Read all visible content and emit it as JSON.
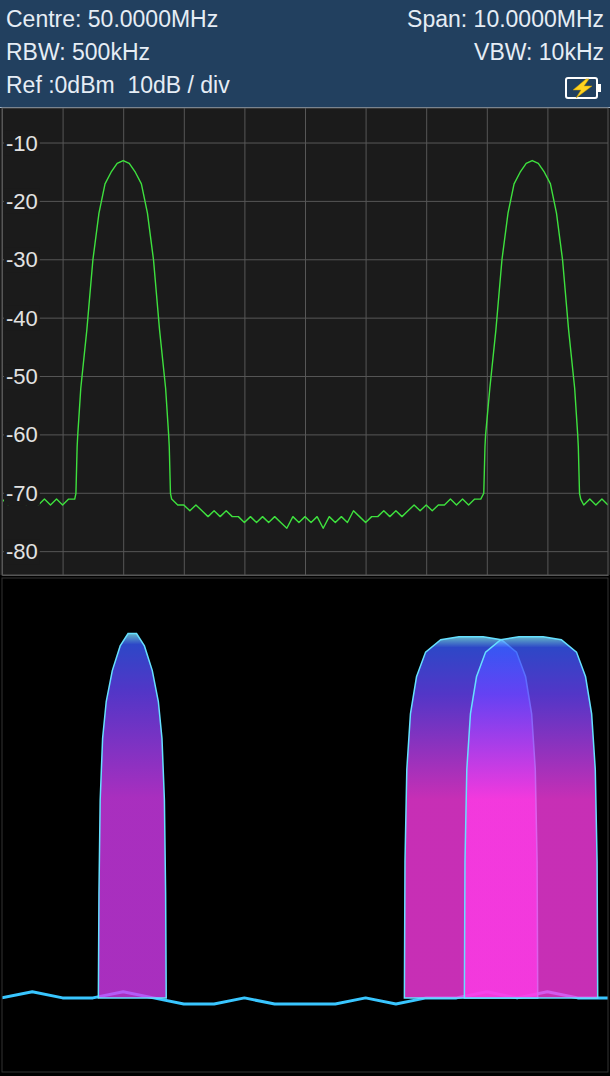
{
  "chart_data": [
    {
      "type": "line",
      "annotations": [
        "Centre: 50.0000MHz",
        "Span: 10.0000MHz",
        "RBW: 500kHz",
        "VBW: 10kHz",
        "Ref :0dBm  10dB / div"
      ],
      "x": [
        45.0,
        45.1,
        45.2,
        45.3,
        45.4,
        45.5,
        45.6,
        45.7,
        45.8,
        45.9,
        46.0,
        46.1,
        46.2,
        46.22,
        46.24,
        46.25,
        46.3,
        46.4,
        46.5,
        46.6,
        46.7,
        46.8,
        46.9,
        47.0,
        47.1,
        47.2,
        47.3,
        47.4,
        47.5,
        47.6,
        47.7,
        47.75,
        47.76,
        47.78,
        47.8,
        47.9,
        48.0,
        48.1,
        48.2,
        48.3,
        48.4,
        48.5,
        48.6,
        48.7,
        48.8,
        48.9,
        49.0,
        49.1,
        49.2,
        49.3,
        49.4,
        49.5,
        49.6,
        49.7,
        49.8,
        49.9,
        50.0,
        50.1,
        50.2,
        50.3,
        50.4,
        50.5,
        50.6,
        50.7,
        50.8,
        50.9,
        51.0,
        51.1,
        51.2,
        51.3,
        51.4,
        51.5,
        51.6,
        51.7,
        51.8,
        51.9,
        52.0,
        52.1,
        52.2,
        52.3,
        52.4,
        52.5,
        52.6,
        52.7,
        52.8,
        52.9,
        52.95,
        52.97,
        52.98,
        53.05,
        53.15,
        53.25,
        53.35,
        53.45,
        53.55,
        53.65,
        53.75,
        53.85,
        53.95,
        54.05,
        54.15,
        54.25,
        54.35,
        54.45,
        54.5,
        54.51,
        54.53,
        54.55,
        54.6,
        54.7,
        54.8,
        54.9,
        55.0
      ],
      "values": [
        -71,
        -72,
        -71,
        -70,
        -72,
        -71,
        -72,
        -71,
        -72,
        -71,
        -72,
        -71,
        -71,
        -70,
        -62,
        -60,
        -52,
        -42,
        -30,
        -22,
        -17,
        -15,
        -13.5,
        -13,
        -13.5,
        -15,
        -17,
        -22,
        -30,
        -42,
        -52,
        -60,
        -62,
        -70,
        -71,
        -72,
        -72,
        -73,
        -72,
        -73,
        -74,
        -73,
        -74,
        -73,
        -74,
        -74,
        -75,
        -74,
        -75,
        -74,
        -75,
        -74,
        -75,
        -76,
        -74,
        -75,
        -74,
        -75,
        -74,
        -76,
        -74,
        -75,
        -74,
        -75,
        -73,
        -74,
        -75,
        -74,
        -74,
        -73,
        -74,
        -73,
        -74,
        -73,
        -72,
        -73,
        -72,
        -73,
        -72,
        -72,
        -71,
        -72,
        -71,
        -72,
        -71,
        -71,
        -70,
        -62,
        -60,
        -52,
        -42,
        -30,
        -22,
        -17,
        -15,
        -13.5,
        -13,
        -13.5,
        -15,
        -17,
        -22,
        -30,
        -42,
        -52,
        -60,
        -62,
        -70,
        -71,
        -72,
        -71,
        -72,
        -71,
        -72
      ],
      "color": "#3ee03e",
      "xlim": [
        45,
        55
      ],
      "xticks": [
        46,
        47,
        48,
        49,
        50,
        51,
        52,
        53,
        54
      ],
      "ylim": [
        -4,
        -84
      ],
      "yticks": [
        -10,
        -20,
        -30,
        -40,
        -50,
        -60,
        -70,
        -80
      ],
      "grid": true,
      "tick_labels": "y"
    },
    {
      "type": "area",
      "xlim": [
        45,
        55
      ],
      "ylim": [
        -4,
        -84
      ],
      "tick_labels": false,
      "series": [
        {
          "type": "line",
          "color": "#39c6ff",
          "x": [
            45.0,
            45.5,
            46.0,
            46.5,
            47.0,
            47.5,
            48.0,
            48.5,
            49.0,
            49.5,
            50.0,
            50.5,
            51.0,
            51.5,
            52.0,
            52.5,
            53.0,
            53.5,
            54.0,
            54.5,
            55.0
          ],
          "values": [
            -72,
            -71,
            -72,
            -72,
            -71,
            -72,
            -73,
            -73,
            -72,
            -73,
            -73,
            -73,
            -72,
            -73,
            -72,
            -72,
            -71,
            -72,
            -71,
            -72,
            -72
          ]
        },
        {
          "color": "#d83cf4",
          "x": [
            46.59,
            46.6,
            46.62,
            46.66,
            46.72,
            46.82,
            46.95,
            47.08,
            47.22,
            47.35,
            47.48,
            47.58,
            47.64,
            47.68,
            47.7,
            47.71
          ],
          "values": [
            -72,
            -55,
            -40,
            -30,
            -24,
            -19,
            -15,
            -13,
            -13,
            -15,
            -19,
            -24,
            -30,
            -40,
            -55,
            -72
          ]
        },
        {
          "color": "#ff3ce8",
          "x": [
            51.64,
            51.65,
            51.68,
            51.74,
            51.84,
            51.99,
            52.24,
            52.54,
            52.94,
            53.24,
            53.49,
            53.64,
            53.74,
            53.8,
            53.83,
            53.84
          ],
          "values": [
            -72,
            -50,
            -35,
            -26,
            -20,
            -16,
            -14,
            -13.5,
            -13.5,
            -14,
            -16,
            -20,
            -26,
            -35,
            -50,
            -72
          ]
        },
        {
          "color": "#ff3ce8",
          "x": [
            52.63,
            52.64,
            52.67,
            52.73,
            52.83,
            52.98,
            53.23,
            53.53,
            53.93,
            54.23,
            54.48,
            54.63,
            54.73,
            54.79,
            54.82,
            54.83
          ],
          "values": [
            -72,
            -50,
            -35,
            -26,
            -20,
            -16,
            -14,
            -13.5,
            -13.5,
            -14,
            -16,
            -20,
            -26,
            -35,
            -50,
            -72
          ]
        }
      ]
    }
  ]
}
